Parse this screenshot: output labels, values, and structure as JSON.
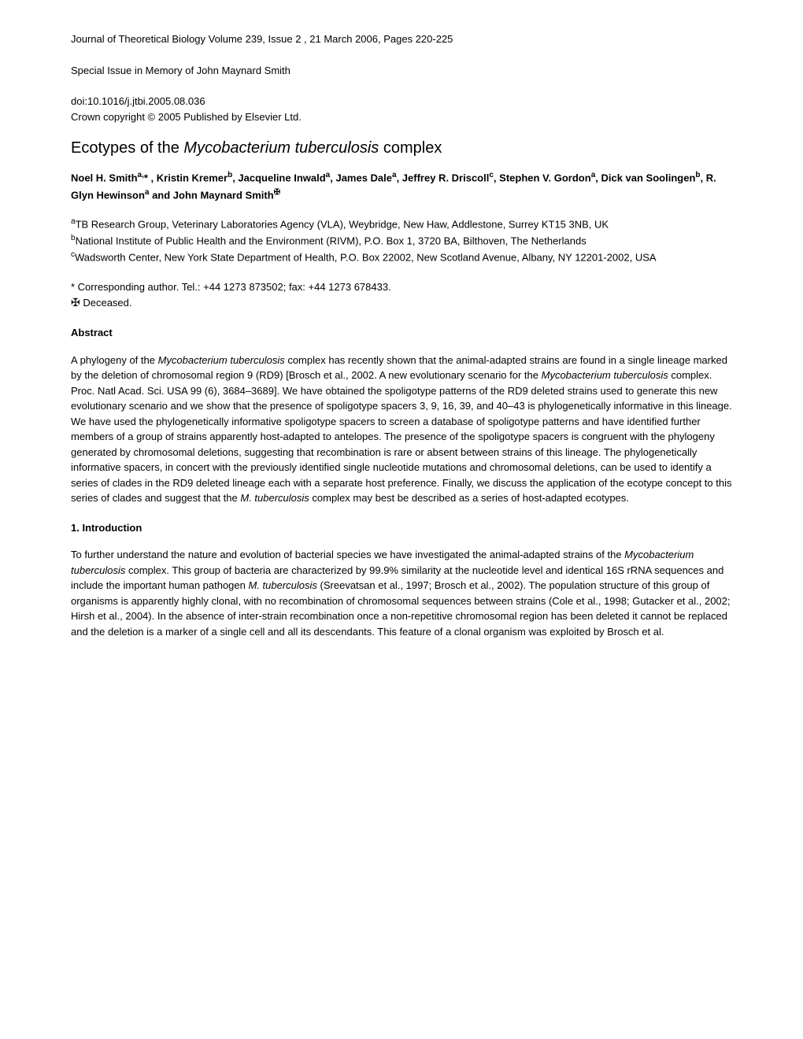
{
  "header": {
    "journal_info": "Journal of Theoretical Biology Volume 239, Issue 2 , 21 March 2006, Pages 220-225",
    "special_issue": "Special Issue in Memory of John Maynard Smith",
    "doi": "doi:10.1016/j.jtbi.2005.08.036",
    "copyright": "Crown copyright © 2005 Published by Elsevier Ltd."
  },
  "title": {
    "prefix": "Ecotypes of the ",
    "italic": "Mycobacterium tuberculosis",
    "suffix": " complex"
  },
  "authors": {
    "a1_name": "Noel H. Smith",
    "a1_sup": "a,",
    "a1_star": "* ",
    "a2_name": ", Kristin Kremer",
    "a2_sup": "b",
    "a3_name": ", Jacqueline Inwald",
    "a3_sup": "a",
    "a4_name": ", James Dale",
    "a4_sup": "a",
    "a5_name": ", Jeffrey R. Driscoll",
    "a5_sup": "c",
    "a6_name": ", Stephen V. Gordon",
    "a6_sup": "a",
    "a7_name": ", Dick van Soolingen",
    "a7_sup": "b",
    "a8_name": ", R. Glyn Hewinson",
    "a8_sup": "a",
    "a9_name": " and John Maynard Smith",
    "dagger": "✠"
  },
  "affiliations": {
    "a_sup": "a",
    "a_text": "TB Research Group, Veterinary Laboratories Agency (VLA), Weybridge, New Haw, Addlestone, Surrey KT15 3NB, UK",
    "b_sup": "b",
    "b_text": "National Institute of Public Health and the Environment (RIVM), P.O. Box 1, 3720 BA, Bilthoven, The Netherlands",
    "c_sup": "c",
    "c_text": "Wadsworth Center, New York State Department of Health, P.O. Box 22002, New Scotland Avenue, Albany, NY 12201-2002, USA"
  },
  "notes": {
    "corresponding": "* Corresponding author. Tel.: +44 1273 873502; fax: +44 1273 678433.",
    "deceased_symbol": "✠",
    "deceased_text": " Deceased."
  },
  "sections": {
    "abstract_heading": "Abstract",
    "abstract_p1": "A phylogeny of the ",
    "abstract_i1": "Mycobacterium tuberculosis",
    "abstract_p2": " complex has recently shown that the animal-adapted strains are found in a single lineage marked by the deletion of chromosomal region 9 (RD9) [Brosch et al., 2002. A new evolutionary scenario for the ",
    "abstract_i2": "Mycobacterium tuberculosis",
    "abstract_p3": " complex. Proc. Natl Acad. Sci. USA 99 (6), 3684–3689]. We have obtained the spoligotype patterns of the RD9 deleted strains used to generate this new evolutionary scenario and we show that the presence of spoligotype spacers 3, 9, 16, 39, and 40–43 is phylogenetically informative in this lineage. We have used the phylogenetically informative spoligotype spacers to screen a database of spoligotype patterns and have identified further members of a group of strains apparently host-adapted to antelopes. The presence of the spoligotype spacers is congruent with the phylogeny generated by chromosomal deletions, suggesting that recombination is rare or absent between strains of this lineage. The phylogenetically informative spacers, in concert with the previously identified single nucleotide mutations and chromosomal deletions, can be used to identify a series of clades in the RD9 deleted lineage each with a separate host preference. Finally, we discuss the application of the ecotype concept to this series of clades and suggest that the ",
    "abstract_i3": "M. tuberculosis",
    "abstract_p4": " complex may best be described as a series of host-adapted ecotypes.",
    "intro_heading": "1. Introduction",
    "intro_p1": "To further understand the nature and evolution of bacterial species we have investigated the animal-adapted strains of the ",
    "intro_i1": "Mycobacterium tuberculosis",
    "intro_p2": " complex. This group of bacteria are characterized by 99.9% similarity at the nucleotide level and identical 16S rRNA sequences and include the important human pathogen ",
    "intro_i2": "M. tuberculosis",
    "intro_p3": " (Sreevatsan et al., 1997; Brosch et al., 2002). The population structure of this group of organisms is apparently highly clonal, with no recombination of chromosomal sequences between strains (Cole et al., 1998; Gutacker et al., 2002; Hirsh et al., 2004). In the absence of inter-strain recombination once a non-repetitive chromosomal region has been deleted it cannot be replaced and the deletion is a marker of a single cell and all its descendants. This feature of a clonal organism was exploited by Brosch et al."
  }
}
